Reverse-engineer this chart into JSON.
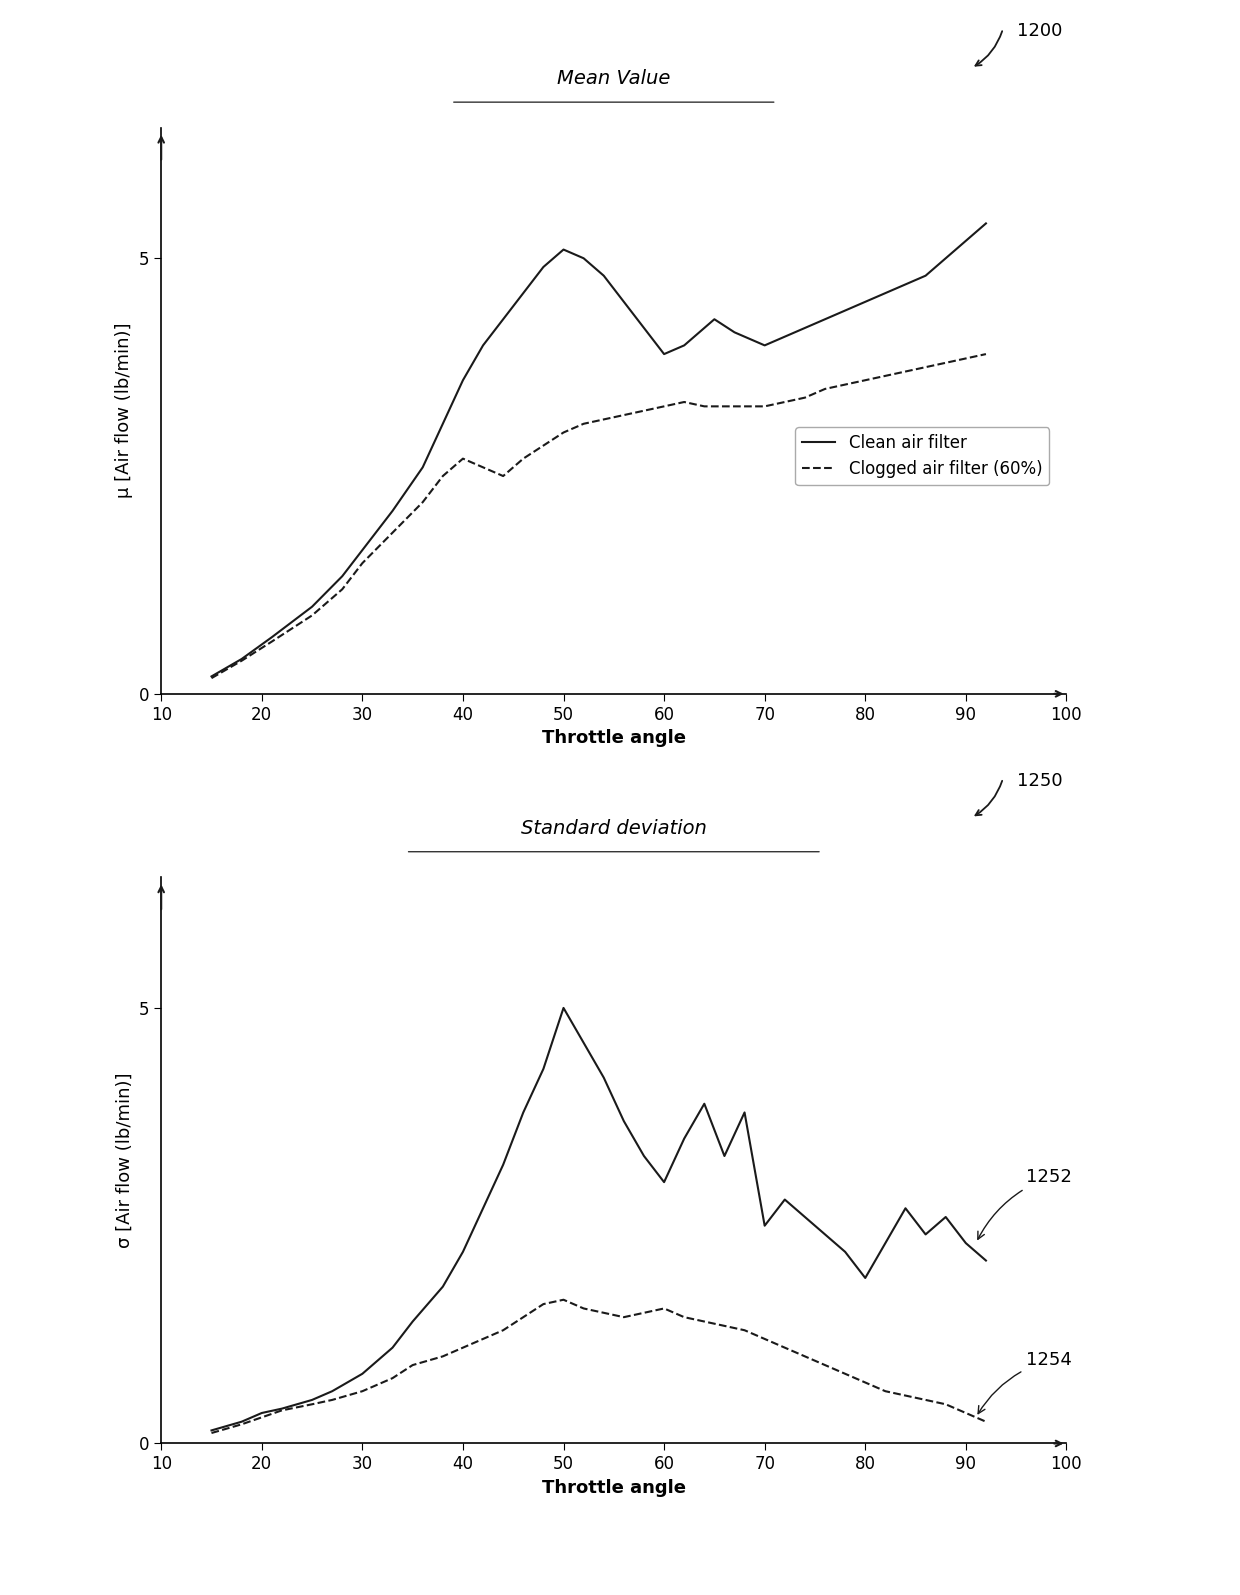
{
  "top_chart": {
    "title": "Mean Value",
    "xlabel": "Throttle angle",
    "ylabel": "μ [Air flow (lb/min)]",
    "xlim": [
      10,
      100
    ],
    "ylim": [
      0,
      6.5
    ],
    "xticks": [
      10,
      20,
      30,
      40,
      50,
      60,
      70,
      80,
      90,
      100
    ],
    "yticks": [
      0,
      5
    ],
    "clean_x": [
      15,
      18,
      21,
      25,
      28,
      30,
      33,
      36,
      38,
      40,
      42,
      44,
      46,
      48,
      50,
      52,
      54,
      56,
      58,
      60,
      62,
      64,
      65,
      67,
      70,
      72,
      74,
      76,
      78,
      80,
      82,
      84,
      86,
      88,
      90,
      92
    ],
    "clean_y": [
      0.2,
      0.4,
      0.65,
      1.0,
      1.35,
      1.65,
      2.1,
      2.6,
      3.1,
      3.6,
      4.0,
      4.3,
      4.6,
      4.9,
      5.1,
      5.0,
      4.8,
      4.5,
      4.2,
      3.9,
      4.0,
      4.2,
      4.3,
      4.15,
      4.0,
      4.1,
      4.2,
      4.3,
      4.4,
      4.5,
      4.6,
      4.7,
      4.8,
      5.0,
      5.2,
      5.4
    ],
    "clogged_x": [
      15,
      18,
      21,
      25,
      28,
      30,
      33,
      36,
      38,
      40,
      42,
      44,
      46,
      48,
      50,
      52,
      54,
      56,
      58,
      60,
      62,
      64,
      66,
      68,
      70,
      72,
      74,
      76,
      78,
      80,
      82,
      84,
      86,
      88,
      90,
      92
    ],
    "clogged_y": [
      0.18,
      0.38,
      0.6,
      0.9,
      1.2,
      1.5,
      1.85,
      2.2,
      2.5,
      2.7,
      2.6,
      2.5,
      2.7,
      2.85,
      3.0,
      3.1,
      3.15,
      3.2,
      3.25,
      3.3,
      3.35,
      3.3,
      3.3,
      3.3,
      3.3,
      3.35,
      3.4,
      3.5,
      3.55,
      3.6,
      3.65,
      3.7,
      3.75,
      3.8,
      3.85,
      3.9
    ],
    "label_1200": "1200",
    "legend_clean": "Clean air filter",
    "legend_clogged": "Clogged air filter (60%)"
  },
  "bottom_chart": {
    "title": "Standard deviation",
    "xlabel": "Throttle angle",
    "ylabel": "σ [Air flow (lb/min)]",
    "xlim": [
      10,
      100
    ],
    "ylim": [
      0,
      6.5
    ],
    "xticks": [
      10,
      20,
      30,
      40,
      50,
      60,
      70,
      80,
      90,
      100
    ],
    "yticks": [
      0,
      5
    ],
    "clean_x": [
      15,
      18,
      20,
      22,
      25,
      27,
      30,
      33,
      35,
      38,
      40,
      42,
      44,
      46,
      48,
      50,
      52,
      54,
      56,
      58,
      60,
      62,
      64,
      66,
      68,
      70,
      72,
      74,
      76,
      78,
      80,
      82,
      84,
      86,
      88,
      90,
      92
    ],
    "clean_y": [
      0.15,
      0.25,
      0.35,
      0.4,
      0.5,
      0.6,
      0.8,
      1.1,
      1.4,
      1.8,
      2.2,
      2.7,
      3.2,
      3.8,
      4.3,
      5.0,
      4.6,
      4.2,
      3.7,
      3.3,
      3.0,
      3.5,
      3.9,
      3.3,
      3.8,
      2.5,
      2.8,
      2.6,
      2.4,
      2.2,
      1.9,
      2.3,
      2.7,
      2.4,
      2.6,
      2.3,
      2.1
    ],
    "clogged_x": [
      15,
      18,
      20,
      22,
      25,
      27,
      30,
      33,
      35,
      38,
      40,
      42,
      44,
      46,
      48,
      50,
      52,
      54,
      56,
      58,
      60,
      62,
      64,
      66,
      68,
      70,
      72,
      74,
      76,
      78,
      80,
      82,
      84,
      86,
      88,
      90,
      92
    ],
    "clogged_y": [
      0.12,
      0.22,
      0.3,
      0.38,
      0.45,
      0.5,
      0.6,
      0.75,
      0.9,
      1.0,
      1.1,
      1.2,
      1.3,
      1.45,
      1.6,
      1.65,
      1.55,
      1.5,
      1.45,
      1.5,
      1.55,
      1.45,
      1.4,
      1.35,
      1.3,
      1.2,
      1.1,
      1.0,
      0.9,
      0.8,
      0.7,
      0.6,
      0.55,
      0.5,
      0.45,
      0.35,
      0.25
    ],
    "label_1250": "1250",
    "label_1252": "1252",
    "label_1254": "1254"
  },
  "line_color": "#1a1a1a",
  "background_color": "#ffffff",
  "title_fontsize": 14,
  "label_fontsize": 13,
  "tick_fontsize": 12,
  "annotation_fontsize": 13
}
